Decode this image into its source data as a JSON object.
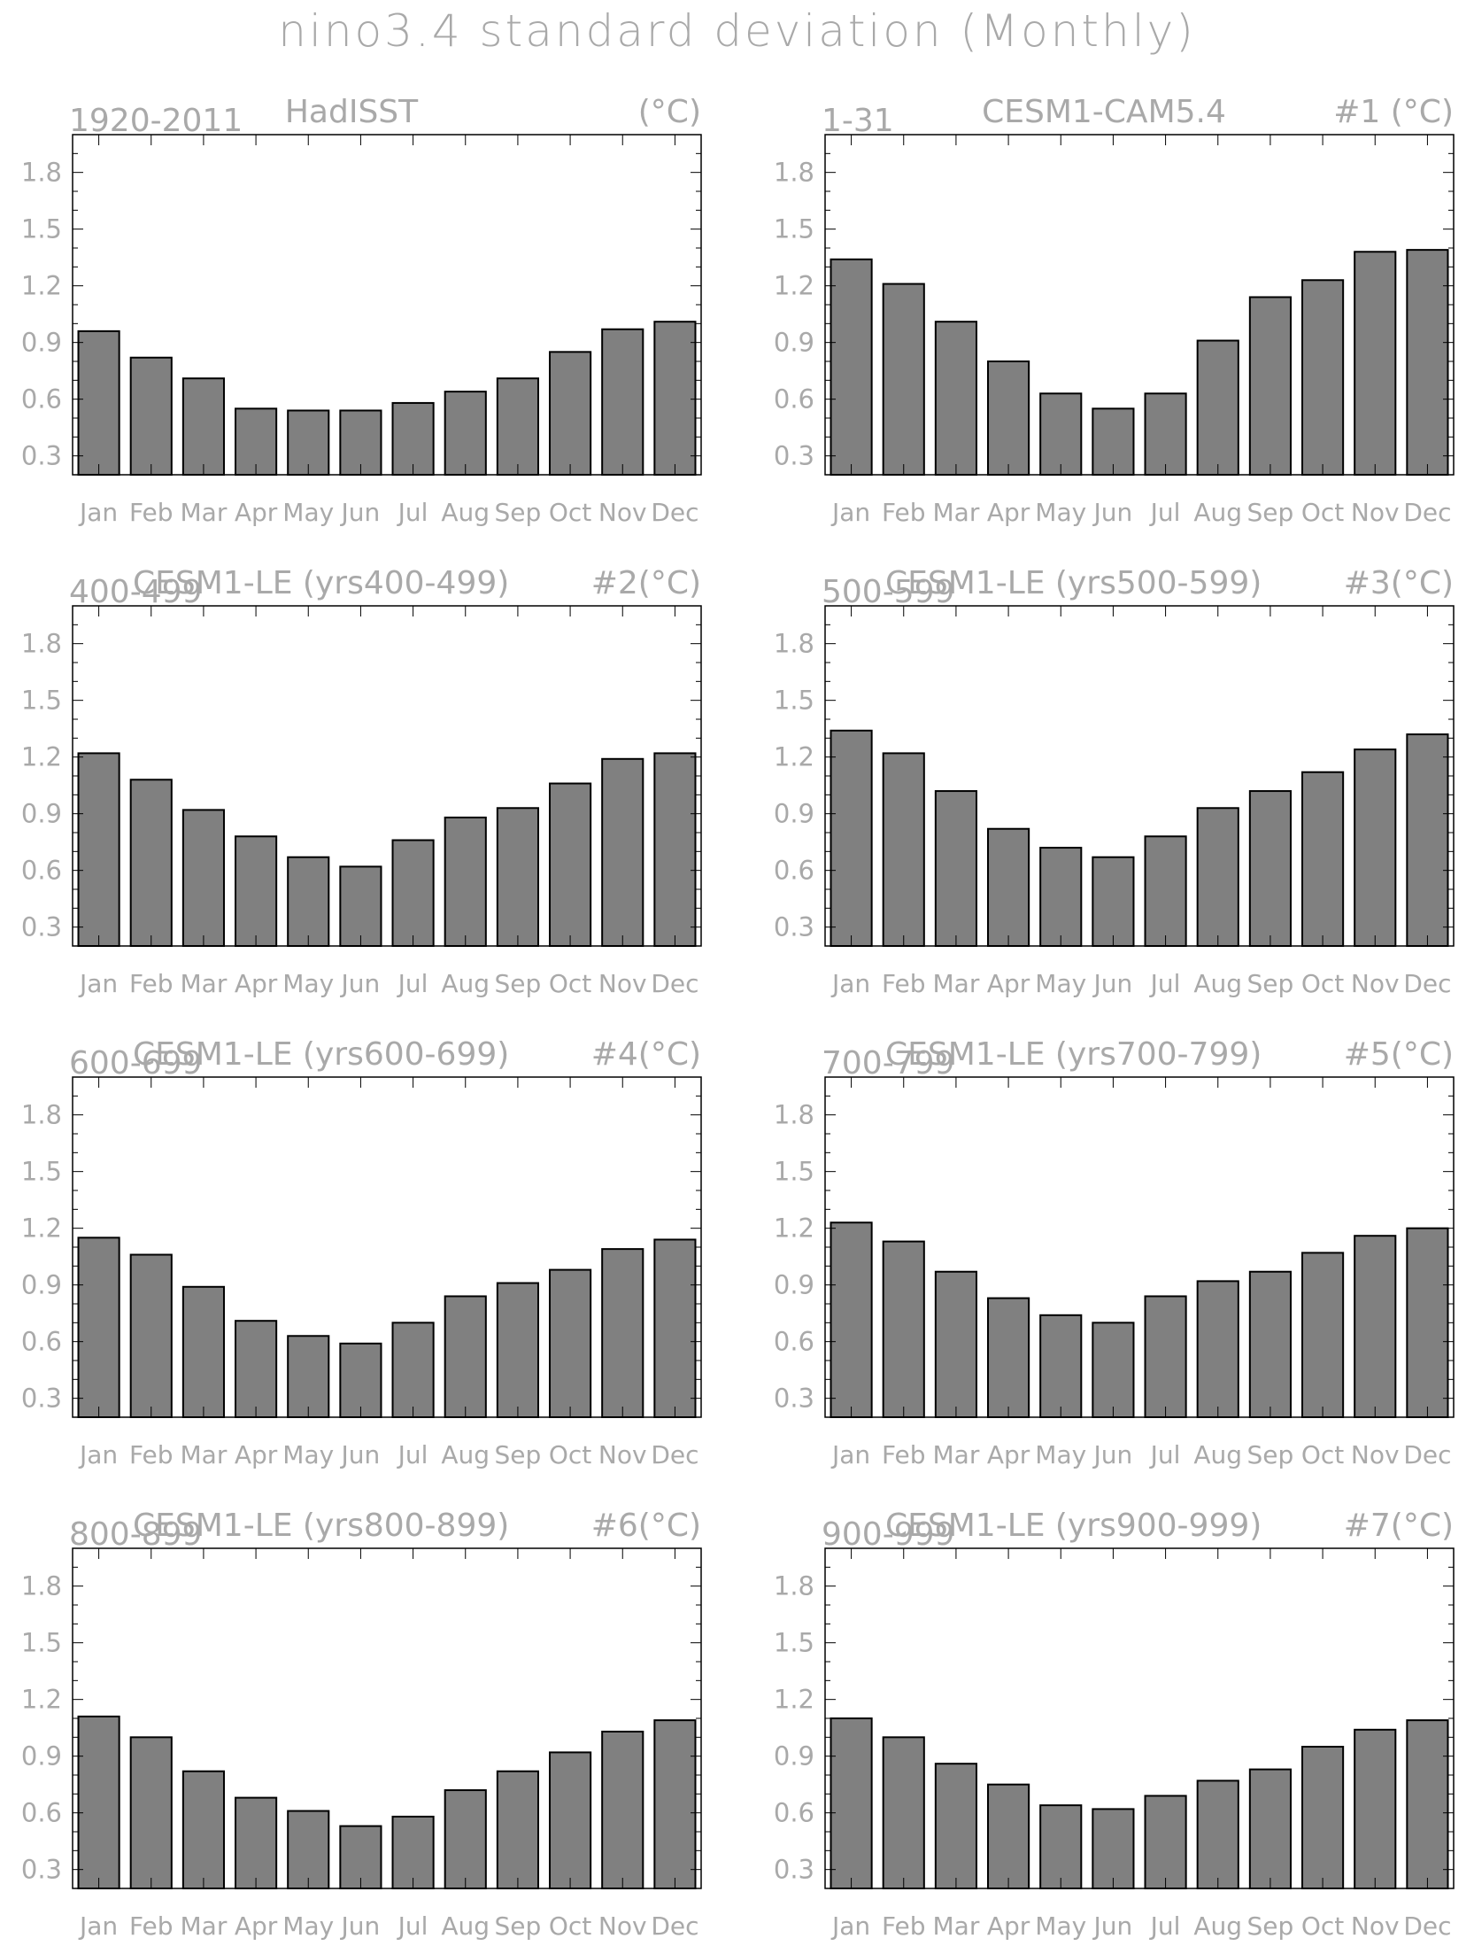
{
  "title": "nino3.4 standard deviation (Monthly)",
  "months": [
    "Jan",
    "Feb",
    "Mar",
    "Apr",
    "May",
    "Jun",
    "Jul",
    "Aug",
    "Sep",
    "Oct",
    "Nov",
    "Dec"
  ],
  "colors": {
    "bar_fill": "#808080",
    "bar_stroke": "#000000",
    "text": "#a9a9a9",
    "axis": "#000000"
  },
  "chart_data": [
    {
      "type": "bar",
      "left_label": "1920-2011",
      "center_label": "HadISST",
      "right_label": "(°C)",
      "categories": [
        "Jan",
        "Feb",
        "Mar",
        "Apr",
        "May",
        "Jun",
        "Jul",
        "Aug",
        "Sep",
        "Oct",
        "Nov",
        "Dec"
      ],
      "values": [
        0.96,
        0.82,
        0.71,
        0.55,
        0.54,
        0.54,
        0.58,
        0.64,
        0.71,
        0.85,
        0.97,
        1.01
      ],
      "ylim": [
        0.2,
        2.0
      ],
      "yticks": [
        "0.3",
        "0.6",
        "0.9",
        "1.2",
        "1.5",
        "1.8"
      ]
    },
    {
      "type": "bar",
      "left_label": "1-31",
      "center_label": "CESM1-CAM5.4",
      "right_label": "#1   (°C)",
      "categories": [
        "Jan",
        "Feb",
        "Mar",
        "Apr",
        "May",
        "Jun",
        "Jul",
        "Aug",
        "Sep",
        "Oct",
        "Nov",
        "Dec"
      ],
      "values": [
        1.34,
        1.21,
        1.01,
        0.8,
        0.63,
        0.55,
        0.63,
        0.91,
        1.14,
        1.23,
        1.38,
        1.39
      ],
      "ylim": [
        0.2,
        2.0
      ],
      "yticks": [
        "0.3",
        "0.6",
        "0.9",
        "1.2",
        "1.5",
        "1.8"
      ]
    },
    {
      "type": "bar",
      "left_label": "400-499",
      "center_label": "CESM1-LE (yrs400-499)",
      "right_label": "#2(°C)",
      "categories": [
        "Jan",
        "Feb",
        "Mar",
        "Apr",
        "May",
        "Jun",
        "Jul",
        "Aug",
        "Sep",
        "Oct",
        "Nov",
        "Dec"
      ],
      "values": [
        1.22,
        1.08,
        0.92,
        0.78,
        0.67,
        0.62,
        0.76,
        0.88,
        0.93,
        1.06,
        1.19,
        1.22
      ],
      "ylim": [
        0.2,
        2.0
      ],
      "yticks": [
        "0.3",
        "0.6",
        "0.9",
        "1.2",
        "1.5",
        "1.8"
      ]
    },
    {
      "type": "bar",
      "left_label": "500-599",
      "center_label": "CESM1-LE (yrs500-599)",
      "right_label": "#3(°C)",
      "categories": [
        "Jan",
        "Feb",
        "Mar",
        "Apr",
        "May",
        "Jun",
        "Jul",
        "Aug",
        "Sep",
        "Oct",
        "Nov",
        "Dec"
      ],
      "values": [
        1.34,
        1.22,
        1.02,
        0.82,
        0.72,
        0.67,
        0.78,
        0.93,
        1.02,
        1.12,
        1.24,
        1.32
      ],
      "ylim": [
        0.2,
        2.0
      ],
      "yticks": [
        "0.3",
        "0.6",
        "0.9",
        "1.2",
        "1.5",
        "1.8"
      ]
    },
    {
      "type": "bar",
      "left_label": "600-699",
      "center_label": "CESM1-LE (yrs600-699)",
      "right_label": "#4(°C)",
      "categories": [
        "Jan",
        "Feb",
        "Mar",
        "Apr",
        "May",
        "Jun",
        "Jul",
        "Aug",
        "Sep",
        "Oct",
        "Nov",
        "Dec"
      ],
      "values": [
        1.15,
        1.06,
        0.89,
        0.71,
        0.63,
        0.59,
        0.7,
        0.84,
        0.91,
        0.98,
        1.09,
        1.14
      ],
      "ylim": [
        0.2,
        2.0
      ],
      "yticks": [
        "0.3",
        "0.6",
        "0.9",
        "1.2",
        "1.5",
        "1.8"
      ]
    },
    {
      "type": "bar",
      "left_label": "700-799",
      "center_label": "CESM1-LE (yrs700-799)",
      "right_label": "#5(°C)",
      "categories": [
        "Jan",
        "Feb",
        "Mar",
        "Apr",
        "May",
        "Jun",
        "Jul",
        "Aug",
        "Sep",
        "Oct",
        "Nov",
        "Dec"
      ],
      "values": [
        1.23,
        1.13,
        0.97,
        0.83,
        0.74,
        0.7,
        0.84,
        0.92,
        0.97,
        1.07,
        1.16,
        1.2
      ],
      "ylim": [
        0.2,
        2.0
      ],
      "yticks": [
        "0.3",
        "0.6",
        "0.9",
        "1.2",
        "1.5",
        "1.8"
      ]
    },
    {
      "type": "bar",
      "left_label": "800-899",
      "center_label": "CESM1-LE (yrs800-899)",
      "right_label": "#6(°C)",
      "categories": [
        "Jan",
        "Feb",
        "Mar",
        "Apr",
        "May",
        "Jun",
        "Jul",
        "Aug",
        "Sep",
        "Oct",
        "Nov",
        "Dec"
      ],
      "values": [
        1.11,
        1.0,
        0.82,
        0.68,
        0.61,
        0.53,
        0.58,
        0.72,
        0.82,
        0.92,
        1.03,
        1.09
      ],
      "ylim": [
        0.2,
        2.0
      ],
      "yticks": [
        "0.3",
        "0.6",
        "0.9",
        "1.2",
        "1.5",
        "1.8"
      ]
    },
    {
      "type": "bar",
      "left_label": "900-999",
      "center_label": "CESM1-LE (yrs900-999)",
      "right_label": "#7(°C)",
      "categories": [
        "Jan",
        "Feb",
        "Mar",
        "Apr",
        "May",
        "Jun",
        "Jul",
        "Aug",
        "Sep",
        "Oct",
        "Nov",
        "Dec"
      ],
      "values": [
        1.1,
        1.0,
        0.86,
        0.75,
        0.64,
        0.62,
        0.69,
        0.77,
        0.83,
        0.95,
        1.04,
        1.09
      ],
      "ylim": [
        0.2,
        2.0
      ],
      "yticks": [
        "0.3",
        "0.6",
        "0.9",
        "1.2",
        "1.5",
        "1.8"
      ]
    }
  ]
}
